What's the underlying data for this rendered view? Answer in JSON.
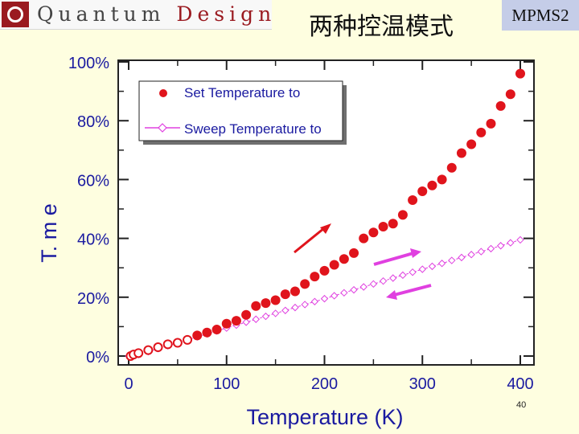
{
  "header": {
    "logo_text_a": "Quantum",
    "logo_text_b": "Design",
    "title": "两种控温模式",
    "badge": "MPMS2"
  },
  "page_number": "40",
  "colors": {
    "set_series": "#e0141c",
    "sweep_series": "#e040e0",
    "background": "#fefee0"
  },
  "chart_data": {
    "type": "scatter",
    "xlabel": "Temperature (K)",
    "ylabel": "T. m e",
    "x_ticks": [
      "0",
      "100",
      "200",
      "300",
      "400"
    ],
    "y_ticks": [
      "0%",
      "20%",
      "40%",
      "60%",
      "80%",
      "100%"
    ],
    "xlim": [
      0,
      410
    ],
    "ylim": [
      0,
      100
    ],
    "legend": {
      "placement": "top-left",
      "entries": [
        "Set Temperature to",
        "Sweep Temperature to"
      ]
    },
    "series": [
      {
        "name": "Set Temperature to",
        "marker": "filled-circle",
        "x": [
          2,
          5,
          10,
          20,
          30,
          40,
          50,
          60,
          70,
          80,
          90,
          100,
          110,
          120,
          130,
          140,
          150,
          160,
          170,
          180,
          190,
          200,
          210,
          220,
          230,
          240,
          250,
          260,
          270,
          280,
          290,
          300,
          310,
          320,
          330,
          340,
          350,
          360,
          370,
          380,
          390,
          400
        ],
        "y": [
          0,
          0.5,
          1,
          2,
          3,
          4,
          4.5,
          5.5,
          7,
          8,
          9,
          11,
          12,
          14,
          17,
          18,
          19,
          21,
          22,
          24.5,
          27,
          29,
          31,
          33,
          35,
          40,
          42,
          44,
          45,
          48,
          53,
          56,
          58,
          60,
          64,
          69,
          72,
          76,
          79,
          85,
          89,
          96
        ]
      },
      {
        "name": "Sweep Temperature to",
        "marker": "open-diamond",
        "x": [
          0,
          10,
          20,
          30,
          40,
          50,
          60,
          70,
          80,
          90,
          100,
          110,
          120,
          130,
          140,
          150,
          160,
          170,
          180,
          190,
          200,
          210,
          220,
          230,
          240,
          250,
          260,
          270,
          280,
          290,
          300,
          310,
          320,
          330,
          340,
          350,
          360,
          370,
          380,
          390,
          400
        ],
        "y": [
          0,
          0.5,
          1.5,
          2.5,
          3.5,
          4.5,
          5.5,
          6.5,
          7.5,
          8.5,
          9.5,
          10.5,
          11.5,
          12.5,
          13.5,
          14.5,
          15.5,
          16.5,
          17.5,
          18.5,
          19.5,
          20.5,
          21.5,
          22.5,
          23.5,
          24.5,
          25.5,
          26.5,
          27.5,
          28.5,
          29.5,
          30.5,
          31.5,
          32.5,
          33.5,
          34.5,
          35.5,
          36.5,
          37.5,
          38.5,
          39.5
        ]
      }
    ]
  }
}
